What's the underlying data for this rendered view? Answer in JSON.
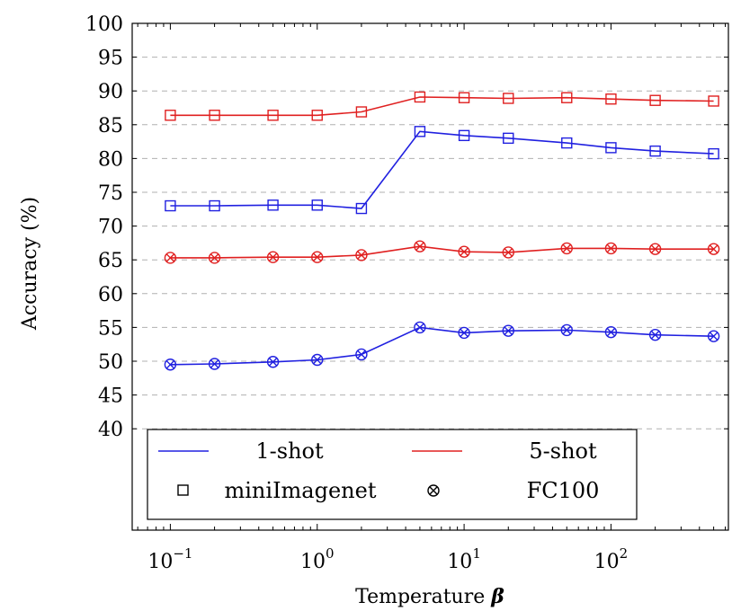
{
  "chart_data": {
    "type": "line",
    "xlabel": "Temperature",
    "xlabel_symbol": "β",
    "ylabel": "Accuracy (%)",
    "x_scale": "log",
    "xlim": [
      0.055,
      630
    ],
    "ylim": [
      25,
      100
    ],
    "y_ticks": [
      40,
      45,
      50,
      55,
      60,
      65,
      70,
      75,
      80,
      85,
      90,
      95,
      100
    ],
    "x_ticks": [
      {
        "value": 0.1,
        "base": "10",
        "exp": "−1"
      },
      {
        "value": 1,
        "base": "10",
        "exp": "0"
      },
      {
        "value": 10,
        "base": "10",
        "exp": "1"
      },
      {
        "value": 100,
        "base": "10",
        "exp": "2"
      }
    ],
    "grid": "horizontal dashed",
    "legend_position": "bottom",
    "x": [
      0.1,
      0.2,
      0.5,
      1,
      2,
      5,
      10,
      20,
      50,
      100,
      200,
      500
    ],
    "series": [
      {
        "shot": "5-shot",
        "dataset": "miniImagenet",
        "color": "#e02020",
        "marker": "square",
        "values": [
          86.4,
          86.4,
          86.4,
          86.4,
          86.9,
          89.1,
          89.0,
          88.9,
          89.0,
          88.8,
          88.6,
          88.5
        ]
      },
      {
        "shot": "1-shot",
        "dataset": "miniImagenet",
        "color": "#2020e0",
        "marker": "square",
        "values": [
          73.0,
          73.0,
          73.1,
          73.1,
          72.6,
          84.0,
          83.4,
          83.0,
          82.3,
          81.6,
          81.1,
          80.7
        ]
      },
      {
        "shot": "5-shot",
        "dataset": "FC100",
        "color": "#e02020",
        "marker": "otimes",
        "values": [
          65.3,
          65.3,
          65.4,
          65.4,
          65.7,
          67.0,
          66.2,
          66.1,
          66.7,
          66.7,
          66.6,
          66.6
        ]
      },
      {
        "shot": "1-shot",
        "dataset": "FC100",
        "color": "#2020e0",
        "marker": "otimes",
        "values": [
          49.5,
          49.6,
          49.9,
          50.2,
          51.0,
          55.0,
          54.2,
          54.5,
          54.6,
          54.3,
          53.9,
          53.7
        ]
      }
    ],
    "legend": {
      "entries": [
        {
          "type": "line",
          "color": "#2020e0",
          "label": "1-shot"
        },
        {
          "type": "line",
          "color": "#e02020",
          "label": "5-shot"
        },
        {
          "type": "marker",
          "marker": "square",
          "label": "miniImagenet"
        },
        {
          "type": "marker",
          "marker": "otimes",
          "label": "FC100"
        }
      ]
    }
  }
}
